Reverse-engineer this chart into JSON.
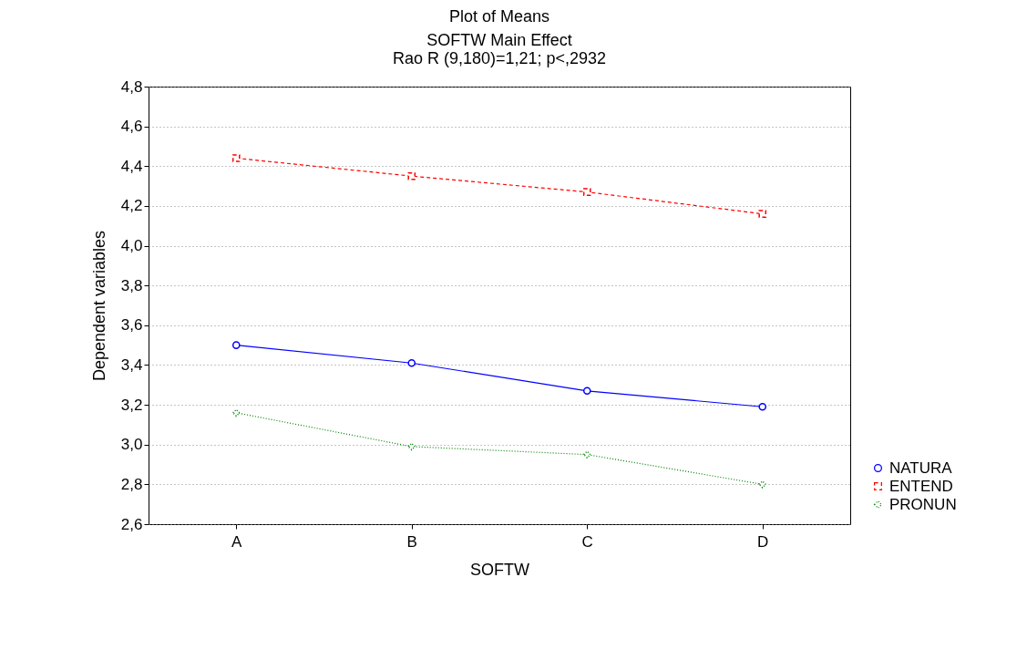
{
  "chart_data": {
    "type": "line",
    "title": "Plot of Means",
    "subtitle": "SOFTW Main Effect\nRao R (9,180)=1,21; p<,2932",
    "xlabel": "SOFTW",
    "ylabel": "Dependent variables",
    "categories": [
      "A",
      "B",
      "C",
      "D"
    ],
    "series": [
      {
        "name": "NATURA",
        "color": "#0000ff",
        "marker": "circle",
        "line_style": "solid",
        "values": [
          3.5,
          3.41,
          3.27,
          3.19
        ]
      },
      {
        "name": "ENTEND",
        "color": "#ff0000",
        "marker": "square",
        "line_style": "dashed",
        "values": [
          4.44,
          4.35,
          4.27,
          4.16
        ]
      },
      {
        "name": "PRONUN",
        "color": "#008000",
        "marker": "diamond",
        "line_style": "dotted",
        "values": [
          3.16,
          2.99,
          2.95,
          2.8
        ]
      }
    ],
    "ylim": [
      2.6,
      4.8
    ],
    "yticks": [
      {
        "value": 2.6,
        "label": "2,6"
      },
      {
        "value": 2.8,
        "label": "2,8"
      },
      {
        "value": 3.0,
        "label": "3,0"
      },
      {
        "value": 3.2,
        "label": "3,2"
      },
      {
        "value": 3.4,
        "label": "3,4"
      },
      {
        "value": 3.6,
        "label": "3,6"
      },
      {
        "value": 3.8,
        "label": "3,8"
      },
      {
        "value": 4.0,
        "label": "4,0"
      },
      {
        "value": 4.2,
        "label": "4,2"
      },
      {
        "value": 4.4,
        "label": "4,4"
      },
      {
        "value": 4.6,
        "label": "4,6"
      },
      {
        "value": 4.8,
        "label": "4,8"
      }
    ],
    "grid": "y",
    "legend": "bottom right"
  }
}
